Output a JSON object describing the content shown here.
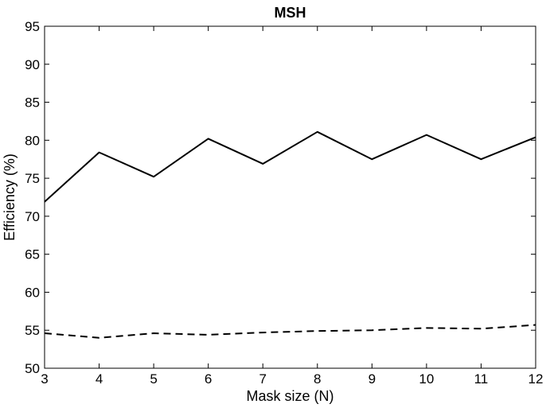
{
  "chart_data": {
    "type": "line",
    "title": "MSH",
    "xlabel": "Mask size (N)",
    "ylabel": "Efficiency (%)",
    "xlim": [
      3,
      12
    ],
    "ylim": [
      50,
      95
    ],
    "grid": false,
    "x_ticks": [
      3,
      4,
      5,
      6,
      7,
      8,
      9,
      10,
      11,
      12
    ],
    "y_ticks": [
      50,
      55,
      60,
      65,
      70,
      75,
      80,
      85,
      90,
      95
    ],
    "x": [
      3,
      4,
      5,
      6,
      7,
      8,
      9,
      10,
      11,
      12
    ],
    "series": [
      {
        "style": "solid",
        "color": "#000000",
        "values": [
          71.9,
          78.4,
          75.2,
          80.2,
          76.9,
          81.1,
          77.5,
          80.7,
          77.5,
          80.4
        ]
      },
      {
        "style": "dashed",
        "color": "#000000",
        "values": [
          54.6,
          54.0,
          54.6,
          54.4,
          54.7,
          54.9,
          55.0,
          55.3,
          55.2,
          55.7
        ]
      }
    ]
  }
}
